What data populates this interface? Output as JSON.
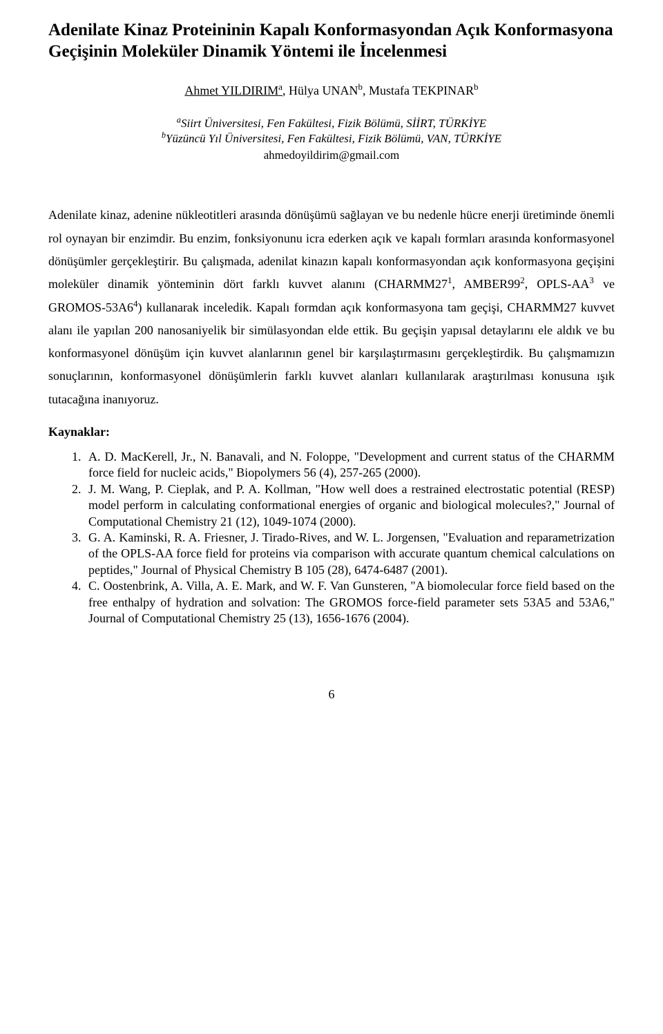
{
  "title": "Adenilate Kinaz Proteininin Kapalı Konformasyondan Açık Konformasyona Geçişinin Moleküler Dinamik Yöntemi ile İncelenmesi",
  "authors": {
    "first": "Ahmet YILDIRIM",
    "first_sup": "a",
    "second": "Hülya UNAN",
    "second_sup": "b",
    "third": "Mustafa TEKPINAR",
    "third_sup": "b"
  },
  "affiliations": {
    "a_sup": "a",
    "a_text": "Siirt Üniversitesi, Fen Fakültesi, Fizik Bölümü, SİİRT, TÜRKİYE",
    "b_sup": "b",
    "b_text": "Yüzüncü Yıl Üniversitesi, Fen Fakültesi, Fizik Bölümü, VAN, TÜRKİYE"
  },
  "email": "ahmedoyildirim@gmail.com",
  "abstract": {
    "p1_a": "Adenilate kinaz, adenine nükleotitleri arasında dönüşümü sağlayan ve bu nedenle hücre enerji üretiminde önemli rol oynayan bir enzimdir. Bu enzim, fonksiyonunu icra ederken açık ve kapalı formları arasında konformasyonel dönüşümler gerçekleştirir. Bu çalışmada, adenilat kinazın kapalı konformasyondan açık konformasyona geçişini moleküler dinamik yönteminin dört farklı kuvvet alanını (CHARMM27",
    "s1": "1",
    "p1_b": ", AMBER99",
    "s2": "2",
    "p1_c": ", OPLS-AA",
    "s3": "3",
    "p1_d": " ve GROMOS-53A6",
    "s4": "4",
    "p1_e": ") kullanarak inceledik. Kapalı formdan açık konformasyona tam geçişi, CHARMM27 kuvvet alanı ile yapılan 200 nanosaniyelik bir simülasyondan elde ettik. Bu geçişin yapısal detaylarını ele aldık ve bu konformasyonel dönüşüm için kuvvet alanlarının genel bir karşılaştırmasını gerçekleştirdik. Bu çalışmamızın sonuçlarının, konformasyonel dönüşümlerin farklı kuvvet alanları kullanılarak araştırılması konusuna ışık tutacağına inanıyoruz."
  },
  "refs_heading": "Kaynaklar:",
  "refs": {
    "r1": "A. D. MacKerell, Jr., N. Banavali, and N. Foloppe, \"Development and current status of the CHARMM force field for nucleic acids,\" Biopolymers 56 (4), 257-265 (2000).",
    "r2": "J. M. Wang, P. Cieplak, and P. A. Kollman, \"How well does a restrained electrostatic potential (RESP) model perform in calculating conformational energies of organic and biological molecules?,\" Journal of Computational Chemistry 21 (12), 1049-1074 (2000).",
    "r3": "G. A. Kaminski, R. A. Friesner, J. Tirado-Rives, and W. L. Jorgensen, \"Evaluation and reparametrization of the OPLS-AA force field for proteins via comparison with accurate quantum chemical calculations on peptides,\" Journal of Physical Chemistry B 105 (28), 6474-6487 (2001).",
    "r4": "C. Oostenbrink, A. Villa, A. E. Mark, and W. F. Van Gunsteren, \"A biomolecular force field based on the free enthalpy of hydration and solvation: The GROMOS force-field parameter sets 53A5 and 53A6,\" Journal of Computational Chemistry 25 (13), 1656-1676 (2004)."
  },
  "page_number": "6"
}
